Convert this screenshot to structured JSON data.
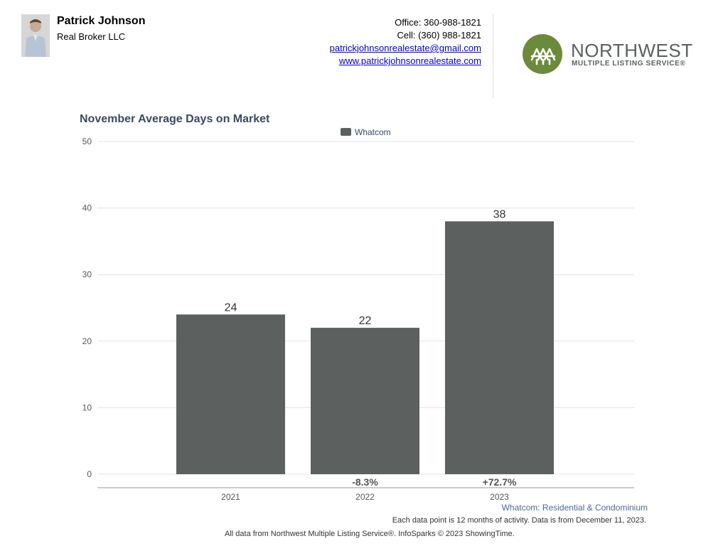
{
  "agent": {
    "name": "Patrick Johnson",
    "company": "Real Broker LLC",
    "office": "Office: 360-988-1821",
    "cell": "Cell: (360) 988-1821",
    "email": "patrickjohnsonrealestate@gmail.com",
    "website": "www.patrickjohnsonrealestate.com"
  },
  "logo": {
    "name": "NORTHWEST",
    "tagline": "MULTIPLE LISTING SERVICE®",
    "color": "#6c8b3a"
  },
  "chart_data": {
    "type": "bar",
    "title": "November Average Days on Market",
    "categories": [
      "2021",
      "2022",
      "2023"
    ],
    "series": [
      {
        "name": "Whatcom",
        "values": [
          24,
          22,
          38
        ],
        "color": "#5c605f"
      }
    ],
    "change_labels": [
      "",
      "-8.3%",
      "+72.7%"
    ],
    "ylim": [
      0,
      50
    ],
    "yticks": [
      0,
      10,
      20,
      30,
      40,
      50
    ],
    "grid": true,
    "legend_position": "top"
  },
  "footer": {
    "region": "Whatcom: Residential & Condominium",
    "note": "Each data point is 12 months of activity. Data is from December 11, 2023.",
    "source": "All data from Northwest Multiple Listing Service®. InfoSparks © 2023 ShowingTime."
  }
}
